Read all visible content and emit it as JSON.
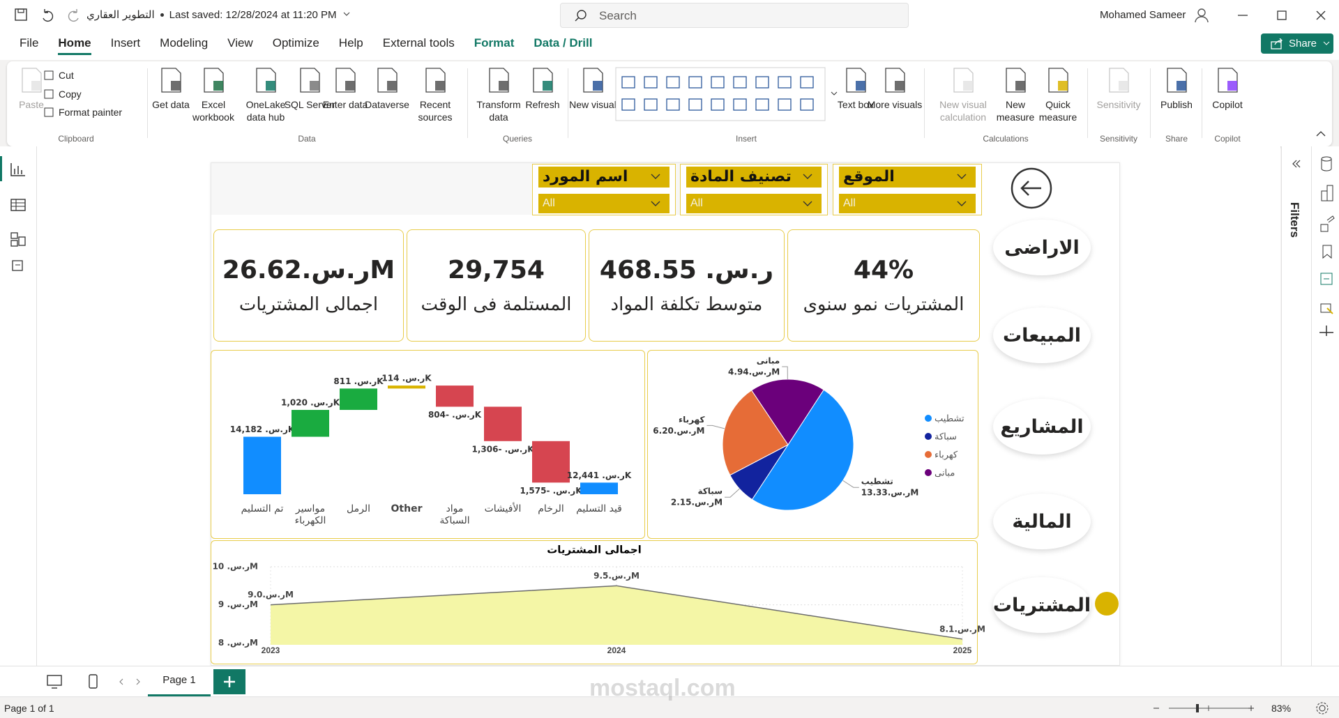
{
  "app": {
    "file_name": "التطوير العقاري",
    "saved": "Last saved: 12/28/2024 at 11:20 PM",
    "search": "Search",
    "user": "Mohamed Sameer"
  },
  "menu": {
    "tabs": [
      "File",
      "Home",
      "Insert",
      "Modeling",
      "View",
      "Optimize",
      "Help",
      "External tools",
      "Format",
      "Data / Drill"
    ],
    "share": "Share"
  },
  "ribbon": {
    "groups": [
      {
        "name": "Clipboard",
        "buttons": [
          "Paste",
          "Cut",
          "Copy",
          "Format painter"
        ]
      },
      {
        "name": "Data",
        "buttons": [
          "Get data",
          "Excel workbook",
          "OneLake data hub",
          "SQL Server",
          "Enter data",
          "Dataverse",
          "Recent sources"
        ]
      },
      {
        "name": "Queries",
        "buttons": [
          "Transform data",
          "Refresh"
        ]
      },
      {
        "name": "Insert",
        "buttons": [
          "New visual",
          "Text box",
          "More visuals"
        ]
      },
      {
        "name": "Calculations",
        "buttons": [
          "New visual calculation",
          "New measure",
          "Quick measure"
        ]
      },
      {
        "name": "Sensitivity",
        "buttons": [
          "Sensitivity"
        ]
      },
      {
        "name": "Share",
        "buttons": [
          "Publish"
        ]
      },
      {
        "name": "Copilot",
        "buttons": [
          "Copilot"
        ]
      }
    ]
  },
  "report": {
    "slicers": [
      {
        "title": "اسم المورد",
        "value": "All"
      },
      {
        "title": "تصنيف المادة",
        "value": "All"
      },
      {
        "title": "الموقع",
        "value": "All"
      }
    ],
    "cards": [
      {
        "value": "ر.س.26.62M",
        "label": "اجمالى المشتريات"
      },
      {
        "value": "29,754",
        "label": "المستلمة فى الوقت"
      },
      {
        "value": "ر.س. 468.55",
        "label": "متوسط تكلفة المواد"
      },
      {
        "value": "44%",
        "label": "المشتريات نمو سنوى"
      }
    ],
    "nav": [
      "الاراضى",
      "المبيعات",
      "المشاريع",
      "المالية",
      "المشتريات"
    ]
  },
  "chart_data": [
    {
      "type": "waterfall",
      "categories": [
        "تم التسليم",
        "مواسير الكهرباء",
        "الرمل",
        "Other",
        "مواد السباكة",
        "الأفيشات",
        "الرخام",
        "قيد التسليم"
      ],
      "values": [
        14182,
        1020,
        811,
        114,
        -804,
        -1306,
        -1575,
        12441
      ],
      "value_labels": [
        "ر.س. 14,182K",
        "ر.س. 1,020K",
        "ر.س. 811K",
        "ر.س. 114K",
        "ر.س. -804K",
        "ر.س. -1,306K",
        "ر.س. -1,575K",
        "ر.س. 12,441K"
      ],
      "colors": [
        "#118DFF",
        "#1AAB40",
        "#1AAB40",
        "#D9B300",
        "#D64550",
        "#D64550",
        "#D64550",
        "#118DFF"
      ],
      "ylim": [
        12000,
        16500
      ]
    },
    {
      "type": "pie",
      "categories": [
        "تشطيب",
        "سباكة",
        "كهرباء",
        "مبانى"
      ],
      "values": [
        13.33,
        2.15,
        6.2,
        4.94
      ],
      "value_labels": [
        "ر.س.13.33M",
        "ر.س.2.15M",
        "ر.س.6.20M",
        "ر.س.4.94M"
      ],
      "colors": [
        "#118DFF",
        "#12239E",
        "#E66C37",
        "#6B007B"
      ]
    },
    {
      "type": "area",
      "title": "اجمالى المشتريات",
      "x": [
        2023,
        2024,
        2025
      ],
      "xlim": [
        2023,
        2025
      ],
      "xticks": [
        2023,
        2024,
        2025
      ],
      "values": [
        9000000,
        9500000,
        8100000
      ],
      "value_labels": [
        "ر.س.9.0M",
        "ر.س.9.5M",
        "ر.س.8.1M"
      ],
      "ylim": [
        7950000,
        10000000
      ],
      "yticks": [
        {
          "value": 8000000,
          "label": "ر.س. 8M"
        },
        {
          "value": 9000000,
          "label": "ر.س. 9M"
        },
        {
          "value": 10000000,
          "label": "ر.س. 10M"
        }
      ],
      "color": "#F4F6A6",
      "line_color": "#6b6b6b",
      "grid": true
    }
  ],
  "pages": {
    "tabs": [
      "Page 1"
    ],
    "status": "Page 1 of 1",
    "zoom": "83%"
  },
  "filters": "Filters",
  "watermark": "mostaql.com"
}
